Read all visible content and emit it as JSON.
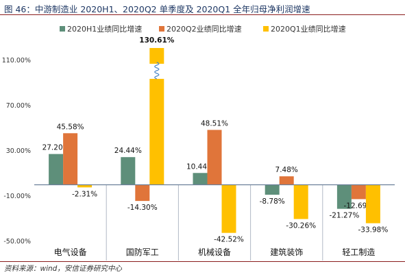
{
  "title": "图 46：中游制造业 2020H1、2020Q2 单季度及 2020Q1 全年归母净利润增速",
  "source": "资料来源：wind，安信证券研究中心",
  "colors": {
    "h1": "#5e8f7a",
    "q2": "#e0753a",
    "q1": "#ffc000",
    "axis": "#6b7f99"
  },
  "chart_data": {
    "type": "bar",
    "categories": [
      "电气设备",
      "国防军工",
      "机械设备",
      "建筑装饰",
      "轻工制造"
    ],
    "series": [
      {
        "name": "2020H1业绩同比增速",
        "values": [
          27.2,
          24.44,
          10.44,
          -8.78,
          -21.27
        ],
        "labels": [
          "27.20%",
          "24.44%",
          "10.44%",
          "-8.78%",
          "-21.27%"
        ]
      },
      {
        "name": "2020Q2业绩同比增速",
        "values": [
          45.58,
          -14.3,
          48.51,
          7.48,
          -12.69
        ],
        "labels": [
          "45.58%",
          "-14.30%",
          "48.51%",
          "7.48%",
          "-12.69%"
        ]
      },
      {
        "name": "2020Q1业绩同比增速",
        "values": [
          -2.31,
          130.61,
          -42.52,
          -30.26,
          -33.98
        ],
        "labels": [
          "-2.31%",
          "130.61%",
          "-42.52%",
          "-30.26%",
          "-33.98%"
        ]
      }
    ],
    "yticks": [
      "110.00%",
      "70.00%",
      "30.00%",
      "-10.00%",
      "-50.00%"
    ],
    "ytick_values": [
      110,
      70,
      30,
      -10,
      -50
    ],
    "ylim": [
      -50,
      110
    ],
    "axis_break": {
      "category": "国防军工",
      "series": "2020Q1业绩同比增速"
    },
    "legend_position": "top",
    "grid": false
  }
}
